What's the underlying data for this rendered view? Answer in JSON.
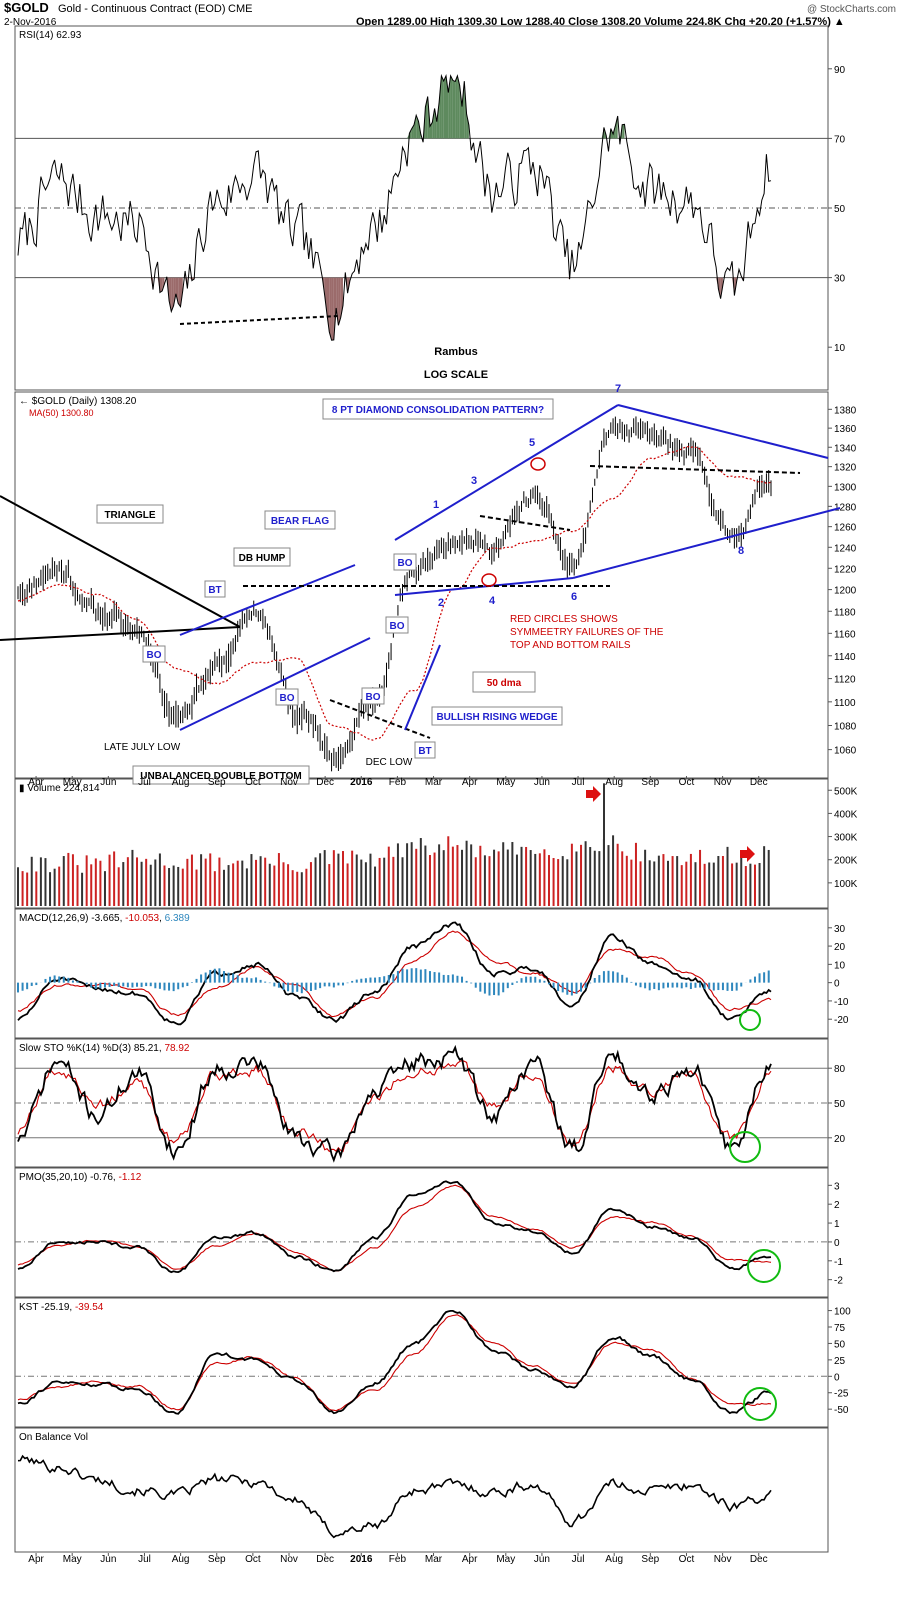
{
  "header": {
    "symbol": "$GOLD",
    "name": "Gold - Continuous Contract (EOD)",
    "exchange": "CME",
    "date": "2-Nov-2016",
    "quote": "Open 1289.00  High 1309.30  Low 1288.40  Close 1308.20  Volume 224.8K  Chg +20.20 (+1.57%) ▲",
    "watermark": "@ StockCharts.com"
  },
  "colors": {
    "price": "#000000",
    "ma": "#cc0000",
    "annot": "#1f1fcc",
    "up": "#333333",
    "down": "#cc2222",
    "hist": "#2e87bd",
    "green": "#11bb11"
  },
  "x_months": [
    "Apr",
    "May",
    "Jun",
    "Jul",
    "Aug",
    "Sep",
    "Oct",
    "Nov",
    "Dec",
    "2016",
    "Feb",
    "Mar",
    "Apr",
    "May",
    "Jun",
    "Jul",
    "Aug",
    "Sep",
    "Oct",
    "Nov",
    "Dec"
  ],
  "chart_data": [
    {
      "type": "line",
      "title": "RSI(14) 62.93",
      "y_ticks": [
        90,
        70,
        50,
        30,
        10
      ],
      "ylim": [
        0,
        100
      ],
      "reference_lines": [
        70,
        50,
        30
      ],
      "x": [
        "Apr-15",
        "May-15",
        "Jun-15",
        "Jul-15",
        "Aug-15",
        "Sep-15",
        "Oct-15",
        "Nov-15",
        "Dec-15",
        "Jan-16",
        "Feb-16",
        "Mar-16",
        "Apr-16",
        "May-16",
        "Jun-16",
        "Jul-16",
        "Aug-16",
        "Sep-16",
        "Oct-16",
        "Nov-16"
      ],
      "values": [
        40,
        58,
        48,
        45,
        20,
        52,
        60,
        42,
        22,
        45,
        72,
        88,
        55,
        62,
        33,
        72,
        55,
        52,
        25,
        63
      ],
      "labels": [
        "Rambus",
        "LOG SCALE"
      ]
    },
    {
      "type": "line",
      "title": "$GOLD (Daily) 1308.20",
      "legend": [
        "MA(50) 1300.80"
      ],
      "scale": "log",
      "y_ticks": [
        1380,
        1360,
        1340,
        1320,
        1300,
        1280,
        1260,
        1240,
        1220,
        1200,
        1180,
        1160,
        1140,
        1120,
        1100,
        1080,
        1060
      ],
      "ylim": [
        1045,
        1390
      ],
      "x": [
        "Apr-15",
        "May-15",
        "Jun-15",
        "Jul-15",
        "Aug-15",
        "Sep-15",
        "Oct-15",
        "Nov-15",
        "Dec-15",
        "Jan-16",
        "Feb-16",
        "Mar-16",
        "Apr-16",
        "May-16",
        "Jun-16",
        "Jul-16",
        "Aug-16",
        "Sep-16",
        "Oct-16",
        "Nov-16"
      ],
      "series": [
        {
          "name": "$GOLD",
          "values": [
            1200,
            1220,
            1180,
            1165,
            1090,
            1130,
            1180,
            1095,
            1055,
            1100,
            1220,
            1250,
            1240,
            1290,
            1220,
            1360,
            1350,
            1330,
            1250,
            1308
          ]
        },
        {
          "name": "MA(50)",
          "values": [
            1190,
            1205,
            1195,
            1175,
            1130,
            1115,
            1135,
            1140,
            1080,
            1070,
            1110,
            1200,
            1240,
            1245,
            1255,
            1290,
            1330,
            1340,
            1310,
            1301
          ]
        }
      ],
      "annotations": {
        "boxes": [
          "TRIANGLE",
          "BEAR FLAG",
          "DB HUMP",
          "BT",
          "BO",
          "BO",
          "BO",
          "BO",
          "BO",
          "BT",
          "8 PT DIAMOND CONSOLIDATION PATTERN?",
          "BULLISH RISING WEDGE",
          "50 dma",
          "UNBALANCED DOUBLE BOTTOM"
        ],
        "texts": [
          "LATE JULY LOW",
          "DEC LOW",
          "RED CIRCLES SHOWS",
          "SYMMEETRY FAILURES OF THE",
          "TOP AND BOTTOM RAILS"
        ],
        "points": [
          "1",
          "2",
          "3",
          "4",
          "5",
          "6",
          "7",
          "8"
        ]
      }
    },
    {
      "type": "bar",
      "title": "Volume 224,814",
      "y_ticks": [
        "500K",
        "400K",
        "300K",
        "200K",
        "100K"
      ],
      "ylim": [
        0,
        540000
      ],
      "x": [
        "Apr-15",
        "May-15",
        "Jun-15",
        "Jul-15",
        "Aug-15",
        "Sep-15",
        "Oct-15",
        "Nov-15",
        "Dec-15",
        "Jan-16",
        "Feb-16",
        "Mar-16",
        "Apr-16",
        "May-16",
        "Jun-16",
        "Jul-16",
        "Aug-16",
        "Sep-16",
        "Oct-16",
        "Nov-16"
      ],
      "values": [
        190000,
        185000,
        180000,
        200000,
        195000,
        185000,
        200000,
        180000,
        205000,
        200000,
        250000,
        260000,
        230000,
        240000,
        250000,
        280000,
        215000,
        200000,
        210000,
        225000
      ]
    },
    {
      "type": "line",
      "title": "MACD(12,26,9) -3.665, -10.053, 6.389",
      "y_ticks": [
        30,
        20,
        10,
        0,
        -10,
        -20
      ],
      "ylim": [
        -27,
        37
      ],
      "x": [
        "Apr-15",
        "May-15",
        "Jun-15",
        "Jul-15",
        "Aug-15",
        "Sep-15",
        "Oct-15",
        "Nov-15",
        "Dec-15",
        "Jan-16",
        "Feb-16",
        "Mar-16",
        "Apr-16",
        "May-16",
        "Jun-16",
        "Jul-16",
        "Aug-16",
        "Sep-16",
        "Oct-16",
        "Nov-16"
      ],
      "series": [
        {
          "name": "MACD",
          "values": [
            -20,
            2,
            -3,
            -6,
            -22,
            5,
            10,
            -8,
            -20,
            -5,
            20,
            32,
            5,
            8,
            -12,
            25,
            10,
            2,
            -20,
            -4
          ]
        },
        {
          "name": "Signal",
          "values": [
            -15,
            -2,
            0,
            -4,
            -18,
            -2,
            8,
            -2,
            -18,
            -8,
            12,
            28,
            12,
            5,
            -5,
            18,
            14,
            5,
            -15,
            -10
          ]
        },
        {
          "name": "Histogram",
          "values": [
            -5,
            4,
            -3,
            -2,
            -4,
            7,
            2,
            -6,
            -2,
            3,
            8,
            4,
            -7,
            3,
            -7,
            7,
            -4,
            -3,
            -5,
            6
          ]
        }
      ]
    },
    {
      "type": "line",
      "title": "Slow STO %K(14) %D(3) 85.21, 78.92",
      "y_ticks": [
        80,
        50,
        20
      ],
      "ylim": [
        0,
        100
      ],
      "x": [
        "Apr-15",
        "May-15",
        "Jun-15",
        "Jul-15",
        "Aug-15",
        "Sep-15",
        "Oct-15",
        "Nov-15",
        "Dec-15",
        "Jan-16",
        "Feb-16",
        "Mar-16",
        "Apr-16",
        "May-16",
        "Jun-16",
        "Jul-16",
        "Aug-16",
        "Sep-16",
        "Oct-16",
        "Nov-16"
      ],
      "series": [
        {
          "name": "%K",
          "values": [
            20,
            85,
            40,
            75,
            10,
            80,
            85,
            20,
            5,
            60,
            85,
            90,
            40,
            85,
            10,
            90,
            60,
            80,
            10,
            85
          ]
        },
        {
          "name": "%D",
          "values": [
            25,
            80,
            45,
            70,
            15,
            75,
            80,
            25,
            8,
            55,
            80,
            85,
            45,
            80,
            15,
            85,
            62,
            75,
            15,
            79
          ]
        }
      ]
    },
    {
      "type": "line",
      "title": "PMO(35,20,10) -0.76, -1.12",
      "y_ticks": [
        3,
        2,
        1,
        0,
        -1,
        -2
      ],
      "ylim": [
        -2.6,
        3.6
      ],
      "x": [
        "Apr-15",
        "May-15",
        "Jun-15",
        "Jul-15",
        "Aug-15",
        "Sep-15",
        "Oct-15",
        "Nov-15",
        "Dec-15",
        "Jan-16",
        "Feb-16",
        "Mar-16",
        "Apr-16",
        "May-16",
        "Jun-16",
        "Jul-16",
        "Aug-16",
        "Sep-16",
        "Oct-16",
        "Nov-16"
      ],
      "series": [
        {
          "name": "PMO",
          "values": [
            -1.4,
            0.0,
            0.0,
            -0.3,
            -1.6,
            0.2,
            0.5,
            -0.8,
            -1.5,
            0.2,
            2.5,
            3.2,
            1.0,
            0.6,
            -0.6,
            1.8,
            0.8,
            0.2,
            -1.4,
            -0.76
          ]
        },
        {
          "name": "Signal",
          "values": [
            -1.2,
            -0.2,
            0.1,
            -0.2,
            -1.4,
            -0.2,
            0.5,
            -0.5,
            -1.5,
            -0.3,
            1.8,
            3.0,
            1.4,
            0.7,
            -0.3,
            1.3,
            1.0,
            0.3,
            -1.0,
            -1.12
          ]
        }
      ]
    },
    {
      "type": "line",
      "title": "KST -25.19, -39.54",
      "y_ticks": [
        100,
        75,
        50,
        25,
        0,
        -25,
        -50
      ],
      "ylim": [
        -68,
        110
      ],
      "x": [
        "Apr-15",
        "May-15",
        "Jun-15",
        "Jul-15",
        "Aug-15",
        "Sep-15",
        "Oct-15",
        "Nov-15",
        "Dec-15",
        "Jan-16",
        "Feb-16",
        "Mar-16",
        "Apr-16",
        "May-16",
        "Jun-16",
        "Jul-16",
        "Aug-16",
        "Sep-16",
        "Oct-16",
        "Nov-16"
      ],
      "series": [
        {
          "name": "KST",
          "values": [
            -40,
            -10,
            -12,
            -20,
            -55,
            35,
            25,
            -5,
            -55,
            -10,
            50,
            100,
            40,
            10,
            -15,
            60,
            30,
            -5,
            -55,
            -25
          ]
        },
        {
          "name": "Signal",
          "values": [
            -35,
            -15,
            -8,
            -15,
            -50,
            20,
            30,
            -3,
            -50,
            -20,
            35,
            95,
            50,
            15,
            -10,
            50,
            40,
            -3,
            -45,
            -40
          ]
        }
      ]
    },
    {
      "type": "line",
      "title": "On Balance Vol",
      "x": [
        "Apr-15",
        "May-15",
        "Jun-15",
        "Jul-15",
        "Aug-15",
        "Sep-15",
        "Oct-15",
        "Nov-15",
        "Dec-15",
        "Jan-16",
        "Feb-16",
        "Mar-16",
        "Apr-16",
        "May-16",
        "Jun-16",
        "Jul-16",
        "Aug-16",
        "Sep-16",
        "Oct-16",
        "Nov-16"
      ],
      "values": [
        80,
        72,
        60,
        50,
        45,
        60,
        58,
        40,
        10,
        15,
        50,
        55,
        48,
        55,
        20,
        55,
        50,
        55,
        35,
        45
      ]
    }
  ]
}
